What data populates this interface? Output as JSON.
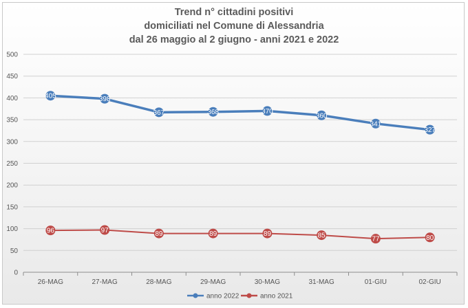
{
  "chart_data": {
    "type": "line",
    "title_lines": [
      "Trend n° cittadini positivi",
      "domiciliati nel Comune di Alessandria",
      "dal 26 maggio al 2 giugno - anni 2021 e 2022"
    ],
    "categories": [
      "26-MAG",
      "27-MAG",
      "28-MAG",
      "29-MAG",
      "30-MAG",
      "31-MAG",
      "01-GIU",
      "02-GIU"
    ],
    "ylim": [
      0,
      500
    ],
    "yticks": [
      0,
      50,
      100,
      150,
      200,
      250,
      300,
      350,
      400,
      450,
      500
    ],
    "grid": true,
    "legend_position": "bottom",
    "series": [
      {
        "name": "anno 2022",
        "color": "#4a7ebb",
        "values": [
          405,
          398,
          367,
          368,
          370,
          360,
          341,
          327
        ],
        "labels": [
          "405",
          "398",
          "367",
          "368",
          "370",
          "360",
          "341",
          "327"
        ]
      },
      {
        "name": "anno 2021",
        "color": "#be4b48",
        "values": [
          96,
          97,
          89,
          89,
          89,
          85,
          77,
          80
        ],
        "labels": [
          "96",
          "97",
          "89",
          "89",
          "89",
          "85",
          "77",
          "80"
        ]
      }
    ]
  }
}
